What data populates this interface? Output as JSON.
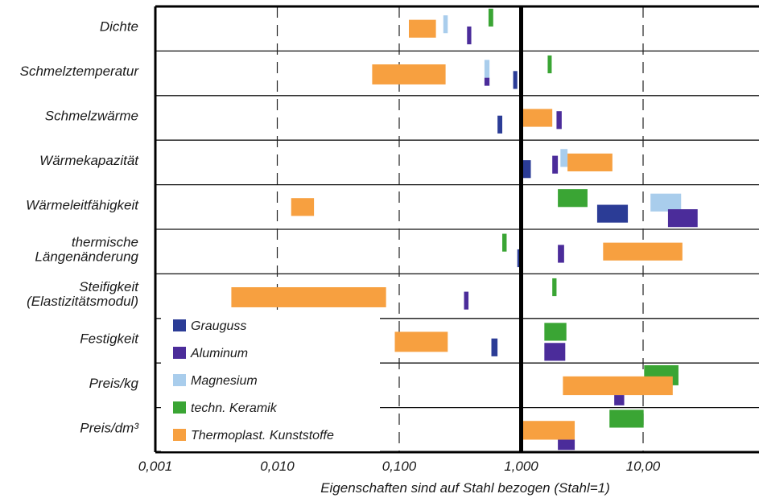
{
  "chart_data": {
    "type": "bar",
    "subtype": "floating-range-bar (horizontal, log scale)",
    "x_scale": "log",
    "xlim": [
      0.001,
      50
    ],
    "xlabel": "Eigenschaften sind auf Stahl bezogen (Stahl=1)",
    "x_ticks": [
      {
        "value": 0.001,
        "label": "0,001"
      },
      {
        "value": 0.01,
        "label": "0,010"
      },
      {
        "value": 0.1,
        "label": "0,100"
      },
      {
        "value": 1,
        "label": "1,000"
      },
      {
        "value": 10,
        "label": "10,00"
      }
    ],
    "reference_line": 1,
    "grid": true,
    "legend_position": "bottom-left",
    "categories": [
      {
        "lines": [
          "Dichte"
        ]
      },
      {
        "lines": [
          "Schmelztemperatur"
        ]
      },
      {
        "lines": [
          "Schmelzwärme"
        ]
      },
      {
        "lines": [
          "Wärmekapazität"
        ]
      },
      {
        "lines": [
          "Wärmeleitfähigkeit"
        ]
      },
      {
        "lines": [
          "thermische",
          "Längenänderung"
        ]
      },
      {
        "lines": [
          "Steifigkeit",
          "(Elastizitätsmodul)"
        ]
      },
      {
        "lines": [
          "Festigkeit"
        ]
      },
      {
        "lines": [
          "Preis/kg"
        ]
      },
      {
        "lines": [
          "Preis/dm³"
        ]
      }
    ],
    "series": [
      {
        "name": "Grauguss",
        "color": "#2b3c96"
      },
      {
        "name": "Aluminum",
        "color": "#4b2c9a"
      },
      {
        "name": "Magnesium",
        "color": "#a9cdec"
      },
      {
        "name": "techn. Keramik",
        "color": "#3aa534"
      },
      {
        "name": "Thermoplast. Kunststoffe",
        "color": "#f7a040"
      }
    ],
    "ranges": [
      {
        "category": 0,
        "series": "Thermoplast. Kunststoffe",
        "from": 0.12,
        "to": 0.2,
        "slot": [
          0.3,
          0.7
        ]
      },
      {
        "category": 0,
        "series": "Magnesium",
        "from": 0.23,
        "to": 0.25,
        "slot": [
          0.2,
          0.6
        ]
      },
      {
        "category": 0,
        "series": "Aluminum",
        "from": 0.36,
        "to": 0.39,
        "slot": [
          0.45,
          0.85
        ]
      },
      {
        "category": 0,
        "series": "techn. Keramik",
        "from": 0.54,
        "to": 0.59,
        "slot": [
          0.05,
          0.45
        ]
      },
      {
        "category": 1,
        "series": "Thermoplast. Kunststoffe",
        "from": 0.06,
        "to": 0.24,
        "slot": [
          0.3,
          0.75
        ]
      },
      {
        "category": 1,
        "series": "Magnesium",
        "from": 0.5,
        "to": 0.55,
        "slot": [
          0.2,
          0.6
        ]
      },
      {
        "category": 1,
        "series": "Aluminum",
        "from": 0.5,
        "to": 0.55,
        "slot": [
          0.6,
          0.78
        ]
      },
      {
        "category": 1,
        "series": "Grauguss",
        "from": 0.86,
        "to": 0.93,
        "slot": [
          0.45,
          0.85
        ]
      },
      {
        "category": 1,
        "series": "techn. Keramik",
        "from": 1.65,
        "to": 1.78,
        "slot": [
          0.1,
          0.5
        ]
      },
      {
        "category": 2,
        "series": "Grauguss",
        "from": 0.64,
        "to": 0.7,
        "slot": [
          0.45,
          0.85
        ]
      },
      {
        "category": 2,
        "series": "Thermoplast. Kunststoffe",
        "from": 1.01,
        "to": 1.8,
        "slot": [
          0.3,
          0.7
        ]
      },
      {
        "category": 2,
        "series": "Aluminum",
        "from": 1.95,
        "to": 2.15,
        "slot": [
          0.35,
          0.75
        ]
      },
      {
        "category": 3,
        "series": "Grauguss",
        "from": 1.02,
        "to": 1.2,
        "slot": [
          0.45,
          0.85
        ]
      },
      {
        "category": 3,
        "series": "Aluminum",
        "from": 1.8,
        "to": 2.0,
        "slot": [
          0.35,
          0.75
        ]
      },
      {
        "category": 3,
        "series": "Magnesium",
        "from": 2.1,
        "to": 2.4,
        "slot": [
          0.2,
          0.6
        ]
      },
      {
        "category": 3,
        "series": "Thermoplast. Kunststoffe",
        "from": 2.4,
        "to": 5.6,
        "slot": [
          0.3,
          0.7
        ]
      },
      {
        "category": 4,
        "series": "Thermoplast. Kunststoffe",
        "from": 0.013,
        "to": 0.02,
        "slot": [
          0.3,
          0.7
        ]
      },
      {
        "category": 4,
        "series": "techn. Keramik",
        "from": 2.0,
        "to": 3.5,
        "slot": [
          0.1,
          0.5
        ]
      },
      {
        "category": 4,
        "series": "Grauguss",
        "from": 4.2,
        "to": 7.5,
        "slot": [
          0.45,
          0.85
        ]
      },
      {
        "category": 4,
        "series": "Magnesium",
        "from": 11.5,
        "to": 20.5,
        "slot": [
          0.2,
          0.6
        ]
      },
      {
        "category": 4,
        "series": "Aluminum",
        "from": 16,
        "to": 28,
        "slot": [
          0.55,
          0.95
        ]
      },
      {
        "category": 5,
        "series": "techn. Keramik",
        "from": 0.7,
        "to": 0.76,
        "slot": [
          0.1,
          0.5
        ]
      },
      {
        "category": 5,
        "series": "Grauguss",
        "from": 0.93,
        "to": 1.0,
        "slot": [
          0.45,
          0.85
        ]
      },
      {
        "category": 5,
        "series": "Aluminum",
        "from": 2.0,
        "to": 2.25,
        "slot": [
          0.35,
          0.75
        ]
      },
      {
        "category": 5,
        "series": "Thermoplast. Kunststoffe",
        "from": 4.7,
        "to": 21,
        "slot": [
          0.3,
          0.7
        ]
      },
      {
        "category": 6,
        "series": "Thermoplast. Kunststoffe",
        "from": 0.0042,
        "to": 0.078,
        "slot": [
          0.3,
          0.75
        ]
      },
      {
        "category": 6,
        "series": "Aluminum",
        "from": 0.34,
        "to": 0.37,
        "slot": [
          0.4,
          0.8
        ]
      },
      {
        "category": 6,
        "series": "techn. Keramik",
        "from": 1.8,
        "to": 1.95,
        "slot": [
          0.1,
          0.5
        ]
      },
      {
        "category": 7,
        "series": "Thermoplast. Kunststoffe",
        "from": 0.092,
        "to": 0.25,
        "slot": [
          0.3,
          0.75
        ]
      },
      {
        "category": 7,
        "series": "Grauguss",
        "from": 0.57,
        "to": 0.64,
        "slot": [
          0.45,
          0.85
        ]
      },
      {
        "category": 7,
        "series": "techn. Keramik",
        "from": 1.55,
        "to": 2.35,
        "slot": [
          0.1,
          0.5
        ]
      },
      {
        "category": 7,
        "series": "Aluminum",
        "from": 1.55,
        "to": 2.3,
        "slot": [
          0.55,
          0.95
        ]
      },
      {
        "category": 8,
        "series": "techn. Keramik",
        "from": 10.2,
        "to": 19.5,
        "slot": [
          0.05,
          0.5
        ]
      },
      {
        "category": 8,
        "series": "Thermoplast. Kunststoffe",
        "from": 2.2,
        "to": 17.5,
        "slot": [
          0.3,
          0.72
        ]
      },
      {
        "category": 8,
        "series": "Aluminum",
        "from": 5.8,
        "to": 7.0,
        "slot": [
          0.72,
          0.95
        ]
      },
      {
        "category": 9,
        "series": "techn. Keramik",
        "from": 5.3,
        "to": 10.1,
        "slot": [
          0.05,
          0.45
        ]
      },
      {
        "category": 9,
        "series": "Thermoplast. Kunststoffe",
        "from": 1.02,
        "to": 2.75,
        "slot": [
          0.3,
          0.72
        ]
      },
      {
        "category": 9,
        "series": "Aluminum",
        "from": 2.0,
        "to": 2.75,
        "slot": [
          0.72,
          0.95
        ]
      }
    ]
  }
}
